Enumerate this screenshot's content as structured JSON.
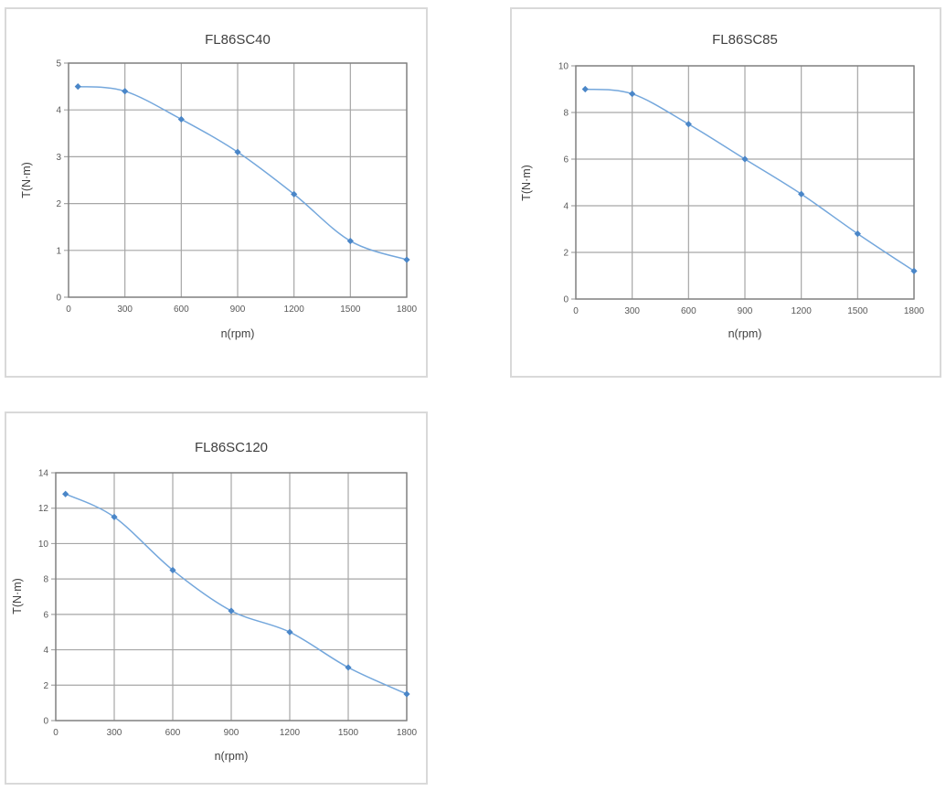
{
  "page": {
    "background": "#ffffff"
  },
  "styles": {
    "line_color": "#74A7DC",
    "marker_color": "#4A86C8",
    "grid_color": "#A6A6A6",
    "axis_border_color": "#7F7F7F",
    "tick_label_color": "#595959",
    "title_color": "#3F3F3F",
    "axis_label_color": "#404040",
    "panel_border_color": "#D9D9D9",
    "panel_background": "#FFFFFF"
  },
  "chart_data": [
    {
      "type": "line",
      "title": "FL86SC40",
      "xlabel": "n(rpm)",
      "ylabel": "T(N·m)",
      "x": [
        50,
        300,
        600,
        900,
        1200,
        1500,
        1800
      ],
      "y": [
        4.5,
        4.4,
        3.8,
        3.1,
        2.2,
        1.2,
        0.8
      ],
      "xlim": [
        0,
        1800
      ],
      "ylim": [
        0,
        5
      ],
      "x_ticks": [
        0,
        300,
        600,
        900,
        1200,
        1500,
        1800
      ],
      "y_ticks": [
        0,
        1,
        2,
        3,
        4,
        5
      ],
      "grid": true,
      "legend": "none",
      "marker": "diamond",
      "line_style": "smooth"
    },
    {
      "type": "line",
      "title": "FL86SC85",
      "xlabel": "n(rpm)",
      "ylabel": "T(N·m)",
      "x": [
        50,
        300,
        600,
        900,
        1200,
        1500,
        1800
      ],
      "y": [
        9.0,
        8.8,
        7.5,
        6.0,
        4.5,
        2.8,
        1.2
      ],
      "xlim": [
        0,
        1800
      ],
      "ylim": [
        0,
        10
      ],
      "x_ticks": [
        0,
        300,
        600,
        900,
        1200,
        1500,
        1800
      ],
      "y_ticks": [
        0,
        2,
        4,
        6,
        8,
        10
      ],
      "grid": true,
      "legend": "none",
      "marker": "diamond",
      "line_style": "smooth"
    },
    {
      "type": "line",
      "title": "FL86SC120",
      "xlabel": "n(rpm)",
      "ylabel": "T(N·m)",
      "x": [
        50,
        300,
        600,
        900,
        1200,
        1500,
        1800
      ],
      "y": [
        12.8,
        11.5,
        8.5,
        6.2,
        5.0,
        3.0,
        1.5
      ],
      "xlim": [
        0,
        1800
      ],
      "ylim": [
        0,
        14
      ],
      "x_ticks": [
        0,
        300,
        600,
        900,
        1200,
        1500,
        1800
      ],
      "y_ticks": [
        0,
        2,
        4,
        6,
        8,
        10,
        12,
        14
      ],
      "grid": true,
      "legend": "none",
      "marker": "diamond",
      "line_style": "smooth"
    }
  ]
}
